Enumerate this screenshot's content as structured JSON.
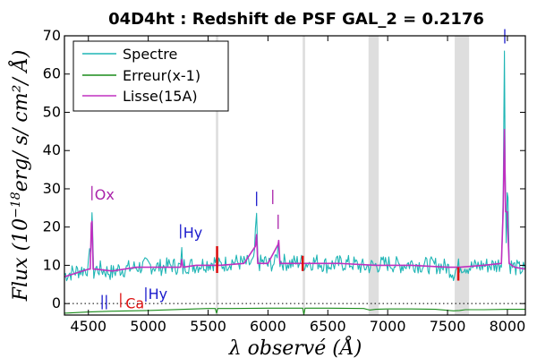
{
  "chart_data": {
    "type": "line",
    "title": "04D4ht : Redshift de PSF GAL_2 = 0.2176",
    "xlabel": "λ observé (Å)",
    "ylabel_prefix": "Flux (10",
    "ylabel_exponent": "−18",
    "ylabel_suffix": "erg/ s/ cm²/ Å)",
    "xlim": [
      4300,
      8150
    ],
    "ylim": [
      -3,
      70
    ],
    "xticks": [
      4500,
      5000,
      5500,
      6000,
      6500,
      7000,
      7500,
      8000
    ],
    "xtick_labels": [
      "4500",
      "5000",
      "5500",
      "6000",
      "6500",
      "7000",
      "7500",
      "8000"
    ],
    "yticks": [
      0,
      10,
      20,
      30,
      40,
      50,
      60,
      70
    ],
    "ytick_labels": [
      "0",
      "10",
      "20",
      "30",
      "40",
      "50",
      "60",
      "70"
    ],
    "grid": false,
    "legend_position": "top-left",
    "colors": {
      "spectre": "#1fb5b5",
      "erreur": "#1a8c1a",
      "lisse": "#c030c0",
      "band": "#dedede",
      "blue_label": "#1a1acc",
      "red_label": "#dd1010",
      "magenta_label": "#aa22aa"
    },
    "series": [
      {
        "name": "Spectre",
        "x": [
          4300,
          4400,
          4480,
          4500,
          4520,
          4530,
          4535,
          4545,
          4560,
          4600,
          4700,
          4750,
          4800,
          4900,
          5000,
          5100,
          5200,
          5270,
          5280,
          5290,
          5300,
          5400,
          5500,
          5570,
          5580,
          5600,
          5700,
          5800,
          5880,
          5895,
          5905,
          5915,
          5930,
          5980,
          6000,
          6030,
          6060,
          6085,
          6090,
          6100,
          6200,
          6270,
          6300,
          6400,
          6500,
          6600,
          6700,
          6800,
          6900,
          7000,
          7100,
          7200,
          7300,
          7400,
          7500,
          7550,
          7600,
          7700,
          7800,
          7900,
          7950,
          7965,
          7975,
          7982,
          7990,
          7998,
          8005,
          8015,
          8025,
          8060,
          8100,
          8150
        ],
        "y": [
          7.5,
          8.5,
          9.0,
          9.5,
          15.0,
          24.0,
          18.0,
          8.0,
          9.0,
          9.0,
          8.0,
          9.0,
          9.0,
          9.5,
          10.0,
          9.5,
          10.0,
          9.5,
          13.0,
          9.0,
          10.0,
          10.0,
          10.5,
          11.0,
          10.0,
          10.0,
          11.0,
          10.5,
          10.5,
          17.5,
          23.0,
          11.0,
          10.5,
          11.0,
          10.0,
          10.5,
          10.5,
          15.0,
          17.0,
          11.0,
          10.5,
          11.0,
          10.5,
          11.0,
          10.0,
          10.5,
          10.5,
          9.5,
          10.0,
          10.5,
          10.0,
          10.5,
          10.0,
          10.0,
          9.5,
          8.0,
          10.0,
          9.5,
          10.0,
          10.0,
          10.5,
          30.0,
          65.0,
          35.0,
          18.0,
          29.0,
          28.0,
          11.0,
          10.0,
          9.5,
          9.0,
          9.0
        ]
      },
      {
        "name": "Erreur(x-1)",
        "x": [
          4300,
          4500,
          4700,
          5000,
          5300,
          5500,
          5560,
          5570,
          5580,
          5700,
          6000,
          6200,
          6290,
          6300,
          6310,
          6500,
          6800,
          6850,
          6900,
          7000,
          7200,
          7400,
          7550,
          7600,
          7650,
          7800,
          8000,
          8150
        ],
        "y": [
          -2.5,
          -2.2,
          -2.0,
          -1.8,
          -1.5,
          -1.3,
          -1.3,
          -2.5,
          -1.3,
          -1.3,
          -1.2,
          -1.2,
          -1.2,
          -2.8,
          -1.2,
          -1.2,
          -1.3,
          -1.7,
          -1.5,
          -1.4,
          -1.4,
          -1.5,
          -1.9,
          -1.8,
          -1.6,
          -1.6,
          -1.5,
          -1.5
        ]
      },
      {
        "name": "Lisse(15A)",
        "x": [
          4300,
          4400,
          4500,
          4515,
          4525,
          4530,
          4540,
          4560,
          4700,
          4900,
          5100,
          5270,
          5280,
          5290,
          5400,
          5600,
          5800,
          5895,
          5905,
          5915,
          6000,
          6085,
          6090,
          6100,
          6300,
          6600,
          6900,
          7200,
          7500,
          7600,
          7800,
          7950,
          7965,
          7975,
          7985,
          7998,
          8005,
          8015,
          8060,
          8150
        ],
        "y": [
          7.0,
          8.0,
          9.0,
          9.0,
          21.0,
          21.5,
          9.0,
          9.0,
          8.5,
          9.5,
          9.5,
          9.5,
          11.5,
          9.5,
          10.0,
          10.0,
          10.5,
          15.0,
          18.0,
          10.5,
          10.5,
          15.5,
          16.5,
          10.5,
          10.5,
          10.5,
          10.0,
          10.0,
          9.5,
          9.5,
          10.0,
          10.5,
          25.0,
          45.5,
          24.0,
          24.0,
          18.0,
          10.5,
          9.5,
          9.0
        ]
      }
    ],
    "sky_bands": [
      {
        "x0": 5565,
        "x1": 5585
      },
      {
        "x0": 6290,
        "x1": 6310
      },
      {
        "x0": 6840,
        "x1": 6925
      },
      {
        "x0": 7560,
        "x1": 7680
      }
    ],
    "zero_line": 0,
    "line_labels": [
      {
        "text": "Ox",
        "x": 4530,
        "y": 27,
        "color_key": "magenta_label",
        "bar": true
      },
      {
        "text": "Hy",
        "x": 5270,
        "y": 17,
        "color_key": "blue_label",
        "bar": true
      },
      {
        "text": "Hy",
        "x": 4985,
        "y": 1.0,
        "color_key": "blue_label",
        "bar": false
      },
      {
        "text": "Ca",
        "x": 4795,
        "y": -1.5,
        "color_key": "red_label",
        "bar": false
      },
      {
        "text": "",
        "x": 4615,
        "y": -1.5,
        "color_key": "blue_label",
        "bar": true
      },
      {
        "text": "",
        "x": 4650,
        "y": -1.5,
        "color_key": "blue_label",
        "bar": true
      },
      {
        "text": "",
        "x": 4770,
        "y": -1.0,
        "color_key": "red_label",
        "bar": true
      },
      {
        "text": "",
        "x": 4980,
        "y": 0.5,
        "color_key": "blue_label",
        "bar": true
      },
      {
        "text": "",
        "x": 5905,
        "y": 25.5,
        "color_key": "blue_label",
        "bar": true
      },
      {
        "text": "",
        "x": 6040,
        "y": 26.0,
        "color_key": "magenta_label",
        "bar": true
      },
      {
        "text": "",
        "x": 6085,
        "y": 19.5,
        "color_key": "magenta_label",
        "bar": true
      },
      {
        "text": "",
        "x": 7978,
        "y": 68.0,
        "color_key": "blue_label",
        "bar": true
      }
    ],
    "red_marks": [
      {
        "x": 5575,
        "y0": 8.0,
        "y1": 15.0
      },
      {
        "x": 6290,
        "y0": 8.5,
        "y1": 12.5
      },
      {
        "x": 7590,
        "y0": 6.0,
        "y1": 9.5
      }
    ]
  }
}
